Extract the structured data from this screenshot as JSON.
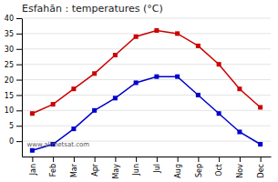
{
  "chart_data": {
    "type": "line",
    "title": "Esfahān : temperatures (°C)",
    "categories": [
      "Jan",
      "Feb",
      "Mar",
      "Apr",
      "May",
      "Jun",
      "Jul",
      "Aug",
      "Sep",
      "Oct",
      "Nov",
      "Dec"
    ],
    "series": [
      {
        "color": "#cc0000",
        "marker": "square",
        "values": [
          9,
          12,
          17,
          22,
          28,
          34,
          36,
          35,
          31,
          25,
          17,
          11
        ]
      },
      {
        "color": "#0000cc",
        "marker": "square",
        "values": [
          -3,
          -1,
          4,
          10,
          14,
          19,
          21,
          21,
          15,
          9,
          3,
          -1
        ]
      }
    ],
    "ylim": [
      -5,
      40
    ],
    "yticks": [
      0,
      5,
      10,
      15,
      20,
      25,
      30,
      35,
      40
    ],
    "grid": true,
    "annotations": [
      {
        "text": "www.allmetsat.com"
      }
    ]
  }
}
